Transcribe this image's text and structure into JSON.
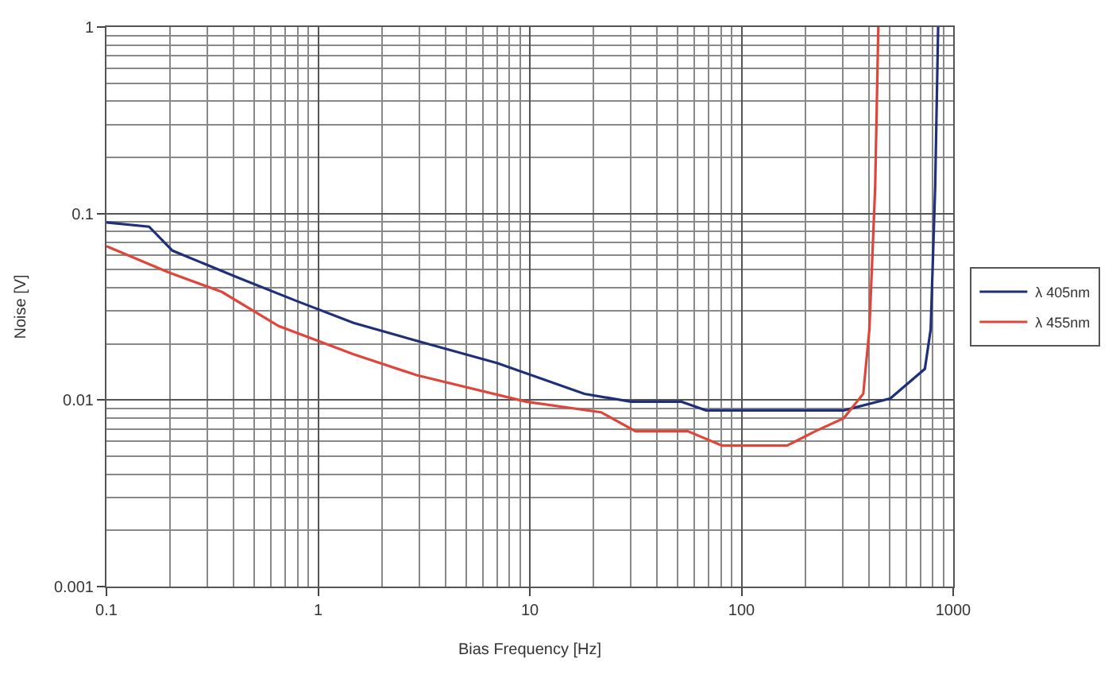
{
  "chart_data": {
    "type": "line",
    "xlabel": "Bias Frequency [Hz]",
    "ylabel": "Noise [V]",
    "log": "xy",
    "xlim": [
      0.1,
      1000
    ],
    "xticks": [
      0.1,
      1,
      10,
      100,
      1000
    ],
    "ylim": [
      0.001,
      1
    ],
    "yticks": [
      0.001,
      0.01,
      0.1,
      1
    ],
    "grid": true,
    "legend": "right",
    "marker": "none",
    "line_style": "solid",
    "series": [
      {
        "name": "λ 405nm",
        "color": "#1f2f7a",
        "x": [
          0.1,
          0.159,
          0.205,
          0.42,
          0.79,
          1.47,
          2.92,
          7.0,
          18.1,
          30,
          52,
          68,
          304,
          505,
          735,
          783,
          822,
          849
        ],
        "values": [
          0.0896,
          0.085,
          0.0633,
          0.0452,
          0.034,
          0.0259,
          0.0208,
          0.0158,
          0.0108,
          0.0098,
          0.0098,
          0.0088,
          0.0088,
          0.0102,
          0.0147,
          0.024,
          0.139,
          1
        ]
      },
      {
        "name": "λ 455nm",
        "color": "#e0453a",
        "x": [
          0.1,
          0.198,
          0.351,
          0.652,
          1.47,
          2.92,
          9.6,
          21.7,
          31.6,
          55.8,
          81,
          164,
          223,
          304,
          376,
          402,
          428,
          443
        ],
        "values": [
          0.0669,
          0.0482,
          0.038,
          0.0249,
          0.0176,
          0.0136,
          0.0098,
          0.0086,
          0.0068,
          0.0068,
          0.0057,
          0.0057,
          0.0068,
          0.008,
          0.0108,
          0.024,
          0.139,
          1
        ]
      }
    ]
  }
}
